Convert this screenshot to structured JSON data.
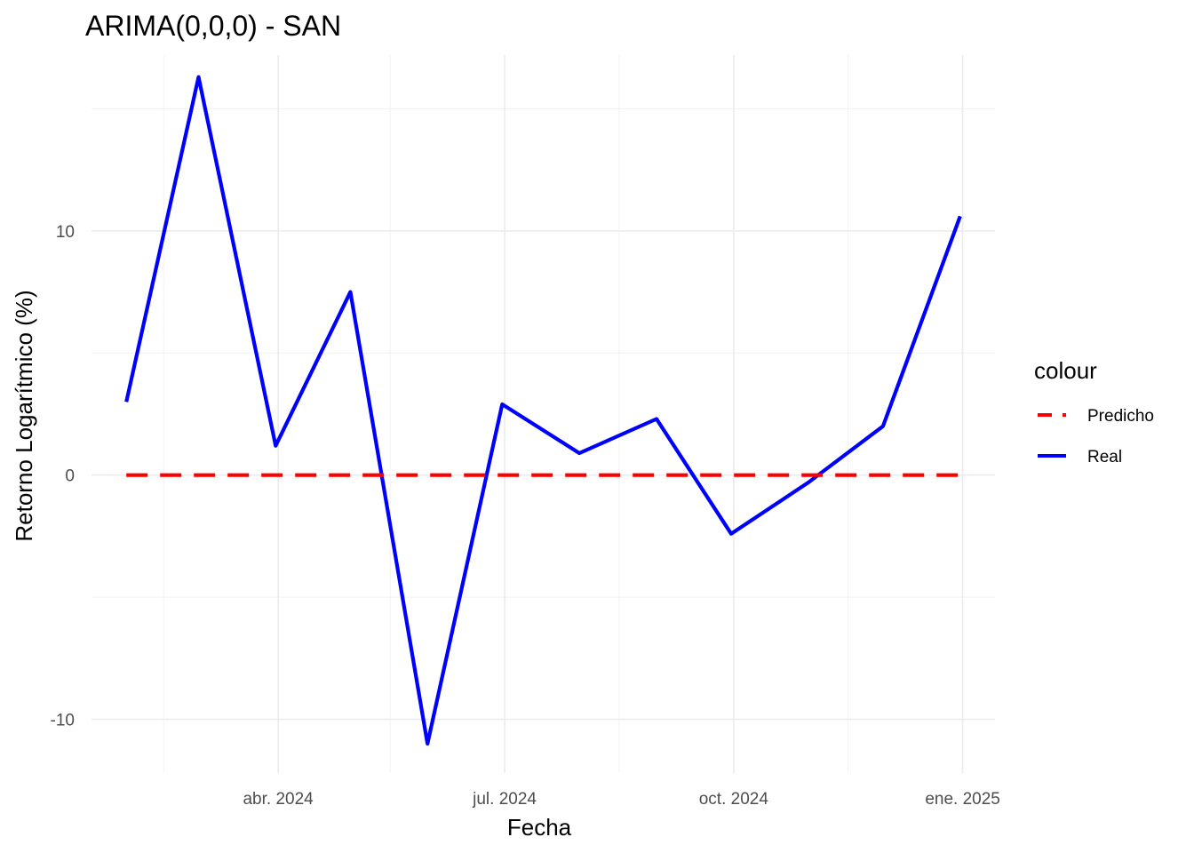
{
  "chart_data": {
    "type": "line",
    "title": "ARIMA(0,0,0) - SAN",
    "xlabel": "Fecha",
    "ylabel": "Retorno Logarítmico (%)",
    "x": [
      "2024-01-31",
      "2024-02-29",
      "2024-03-31",
      "2024-04-30",
      "2024-05-31",
      "2024-06-30",
      "2024-07-31",
      "2024-08-31",
      "2024-09-30",
      "2024-10-31",
      "2024-11-30",
      "2024-12-31"
    ],
    "x_ticks": [
      {
        "date": "2024-04-01",
        "label": "abr. 2024"
      },
      {
        "date": "2024-07-01",
        "label": "jul. 2024"
      },
      {
        "date": "2024-10-01",
        "label": "oct. 2024"
      },
      {
        "date": "2025-01-01",
        "label": "ene. 2025"
      }
    ],
    "x_minor_ticks": [
      "2024-02-15",
      "2024-05-16",
      "2024-08-16",
      "2024-11-16"
    ],
    "xlim": [
      "2024-01-17",
      "2025-01-14"
    ],
    "y_ticks": [
      -10,
      0,
      10
    ],
    "y_minor_ticks": [
      -5,
      5,
      15
    ],
    "ylim": [
      -12.2,
      17.2
    ],
    "grid": true,
    "legend": {
      "title": "colour",
      "placement": "right",
      "entries": [
        {
          "label": "Predicho",
          "color": "#ff0000",
          "style": "dashed"
        },
        {
          "label": "Real",
          "color": "#0000ff",
          "style": "solid"
        }
      ]
    },
    "series": [
      {
        "name": "Real",
        "color": "#0000ff",
        "style": "solid",
        "values": [
          3.0,
          16.3,
          1.2,
          7.5,
          -11.0,
          2.9,
          0.9,
          2.3,
          -2.4,
          -0.3,
          2.0,
          10.6
        ]
      },
      {
        "name": "Predicho",
        "color": "#ff0000",
        "style": "dashed",
        "values": [
          0,
          0,
          0,
          0,
          0,
          0,
          0,
          0,
          0,
          0,
          0,
          0
        ]
      }
    ]
  }
}
